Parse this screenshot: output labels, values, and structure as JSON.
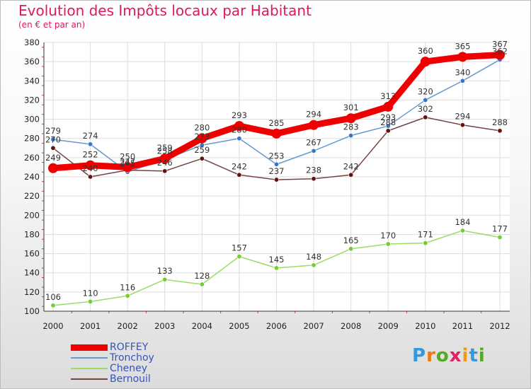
{
  "title": "Evolution des Impôts locaux par Habitant",
  "subtitle": "(en € et par an)",
  "logo": "Proxiti",
  "chart_data": {
    "type": "line",
    "title": "Evolution des Impôts locaux par Habitant",
    "subtitle": "(en € et par an)",
    "xlabel": "",
    "ylabel": "",
    "categories": [
      "2000",
      "2001",
      "2002",
      "2003",
      "2004",
      "2005",
      "2006",
      "2007",
      "2008",
      "2009",
      "2010",
      "2011",
      "2012"
    ],
    "ylim": [
      100,
      380
    ],
    "yticks": [
      100,
      120,
      140,
      160,
      180,
      200,
      220,
      240,
      260,
      280,
      300,
      320,
      340,
      360,
      380
    ],
    "grid": true,
    "legend_position": "bottom-left",
    "series": [
      {
        "name": "Tronchoy",
        "color": "#6699cc",
        "marker": "#3377cc",
        "width": 1.5,
        "values": [
          279,
          274,
          245,
          258,
          273,
          280,
          253,
          267,
          283,
          293,
          320,
          340,
          362
        ]
      },
      {
        "name": "Cheney",
        "color": "#99dd66",
        "marker": "#77cc33",
        "width": 1.5,
        "values": [
          106,
          110,
          116,
          133,
          128,
          157,
          145,
          148,
          165,
          170,
          171,
          184,
          177
        ]
      },
      {
        "name": "Bernouil",
        "color": "#774444",
        "marker": "#661111",
        "width": 1.5,
        "values": [
          270,
          240,
          247,
          246,
          259,
          242,
          237,
          238,
          242,
          288,
          302,
          294,
          288
        ]
      },
      {
        "name": "ROFFEY",
        "color": "#ee0000",
        "marker": "#ee0000",
        "width": 9,
        "values": [
          249,
          252,
          250,
          259,
          280,
          293,
          285,
          294,
          301,
          313,
          360,
          365,
          367
        ]
      }
    ],
    "legend_order": [
      "ROFFEY",
      "Tronchoy",
      "Cheney",
      "Bernouil"
    ]
  }
}
